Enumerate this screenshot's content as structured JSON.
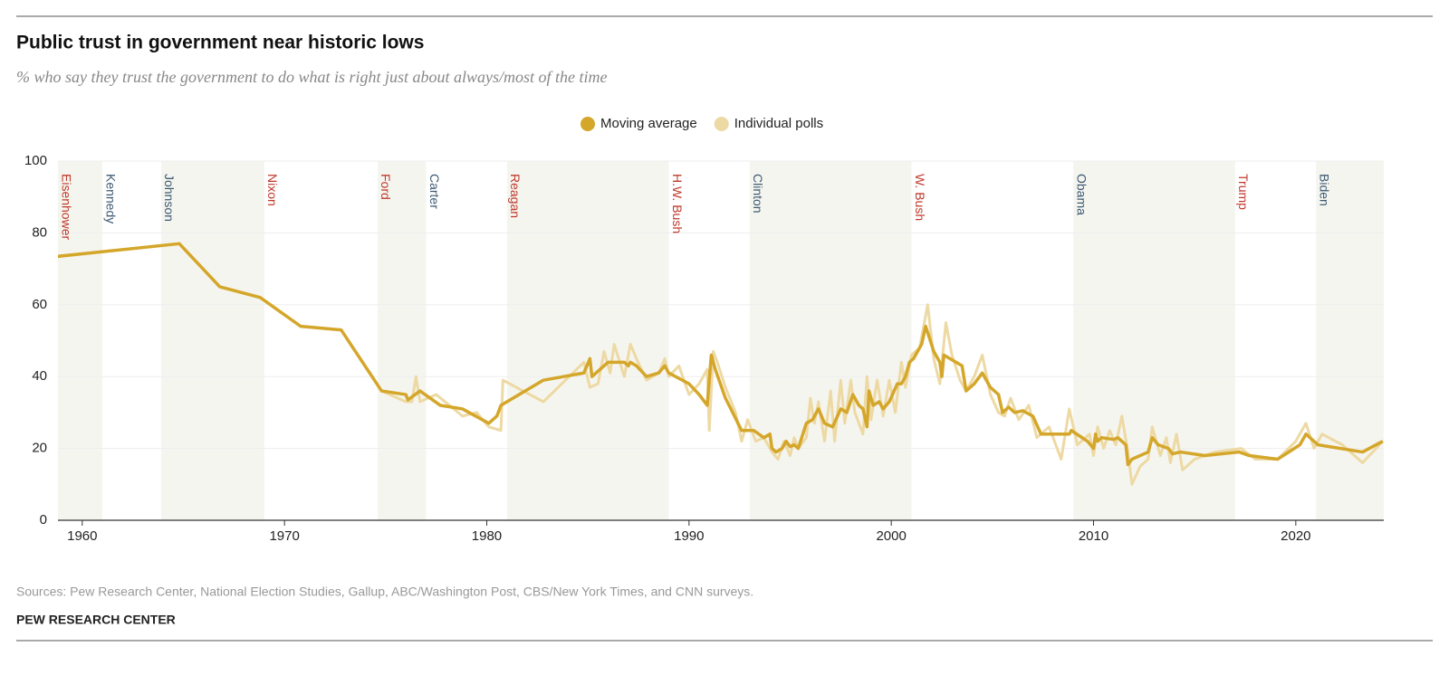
{
  "chart_data": {
    "type": "line",
    "title": "Public trust in government near historic lows",
    "subtitle": "% who say they trust the government to do what is right just about always/most of the time",
    "source": "Sources: Pew Research Center, National Election Studies, Gallup, ABC/Washington Post, CBS/New York Times, and CNN surveys.",
    "brand": "PEW RESEARCH CENTER",
    "xlim": [
      1958.8,
      2024.35
    ],
    "xticks": [
      1960,
      1970,
      1980,
      1990,
      2000,
      2010,
      2020
    ],
    "ylim": [
      0,
      100
    ],
    "yticks": [
      0,
      20,
      40,
      60,
      80,
      100
    ],
    "grid": true,
    "legend": "top",
    "presidents": [
      {
        "name": "Eisenhower",
        "start": 1953,
        "color": "#c0392b"
      },
      {
        "name": "Kennedy",
        "start": 1961.0,
        "color": "#3d5a73"
      },
      {
        "name": "Johnson",
        "start": 1963.9,
        "color": "#3d5a73"
      },
      {
        "name": "Nixon",
        "start": 1969.0,
        "color": "#c0392b"
      },
      {
        "name": "Ford",
        "start": 1974.6,
        "color": "#c0392b"
      },
      {
        "name": "Carter",
        "start": 1977.0,
        "color": "#3d5a73"
      },
      {
        "name": "Reagan",
        "start": 1981.0,
        "color": "#c0392b"
      },
      {
        "name": "H.W. Bush",
        "start": 1989.0,
        "color": "#c0392b"
      },
      {
        "name": "Clinton",
        "start": 1993.0,
        "color": "#3d5a73"
      },
      {
        "name": "W. Bush",
        "start": 2001.0,
        "color": "#c0392b"
      },
      {
        "name": "Obama",
        "start": 2009.0,
        "color": "#3d5a73"
      },
      {
        "name": "Trump",
        "start": 2017.0,
        "color": "#c0392b"
      },
      {
        "name": "Biden",
        "start": 2021.0,
        "color": "#3d5a73"
      }
    ],
    "series": [
      {
        "name": "Individual polls",
        "color": "#edd9a3",
        "x": [
          1958,
          1964.8,
          1966.8,
          1968.8,
          1970.8,
          1972.8,
          1974.8,
          1976.0,
          1976.3,
          1976.5,
          1976.7,
          1977.5,
          1978.8,
          1979.5,
          1980.1,
          1980.7,
          1980.8,
          1982.8,
          1984.8,
          1985.1,
          1985.5,
          1985.8,
          1986.1,
          1986.3,
          1986.8,
          1987.1,
          1987.4,
          1987.9,
          1988.5,
          1988.8,
          1989.0,
          1989.5,
          1990.0,
          1990.5,
          1990.9,
          1991.0,
          1991.2,
          1991.4,
          1991.8,
          1992.3,
          1992.6,
          1992.9,
          1993.3,
          1993.7,
          1994.1,
          1994.4,
          1994.7,
          1995.0,
          1995.2,
          1995.4,
          1995.8,
          1996.0,
          1996.2,
          1996.4,
          1996.7,
          1997.0,
          1997.2,
          1997.5,
          1997.7,
          1998.0,
          1998.2,
          1998.6,
          1998.8,
          1999.0,
          1999.3,
          1999.6,
          1999.9,
          2000.2,
          2000.5,
          2000.7,
          2001.0,
          2001.4,
          2001.8,
          2002.1,
          2002.4,
          2002.7,
          2003.0,
          2003.4,
          2003.7,
          2004.1,
          2004.5,
          2004.9,
          2005.3,
          2005.6,
          2005.9,
          2006.3,
          2006.8,
          2007.2,
          2007.8,
          2008.4,
          2008.8,
          2009.2,
          2009.8,
          2010.0,
          2010.2,
          2010.5,
          2010.8,
          2011.1,
          2011.4,
          2011.7,
          2011.9,
          2012.3,
          2012.7,
          2012.9,
          2013.3,
          2013.6,
          2013.8,
          2014.1,
          2014.4,
          2015.0,
          2016.0,
          2017.3,
          2018.0,
          2019.1,
          2020.0,
          2020.5,
          2020.9,
          2021.3,
          2022.3,
          2023.3,
          2024.3
        ],
        "values": [
          73,
          77,
          65,
          62,
          54,
          53,
          36,
          33,
          33,
          40,
          33,
          35,
          29,
          30,
          26,
          25,
          39,
          33,
          44,
          37,
          38,
          47,
          41,
          49,
          40,
          49,
          45,
          39,
          41,
          45,
          40,
          43,
          35,
          38,
          42,
          25,
          47,
          44,
          37,
          30,
          22,
          28,
          22,
          23,
          19,
          17,
          22,
          18,
          23,
          20,
          23,
          34,
          27,
          33,
          22,
          36,
          22,
          39,
          27,
          39,
          30,
          24,
          40,
          28,
          39,
          29,
          39,
          30,
          44,
          37,
          46,
          48,
          60,
          45,
          38,
          55,
          46,
          39,
          36,
          40,
          46,
          35,
          30,
          29,
          34,
          28,
          32,
          23,
          26,
          17,
          31,
          21,
          24,
          18,
          26,
          20,
          25,
          21,
          29,
          19,
          10,
          15,
          17,
          26,
          18,
          23,
          16,
          24,
          14,
          17,
          19,
          20,
          17,
          17,
          22,
          27,
          20,
          24,
          21,
          16,
          22
        ]
      },
      {
        "name": "Moving average",
        "color": "#d4a62a",
        "x": [
          1958,
          1964.8,
          1966.8,
          1968.8,
          1970.8,
          1972.8,
          1974.8,
          1976.0,
          1976.1,
          1976.7,
          1977.7,
          1978.8,
          1980.1,
          1980.5,
          1980.7,
          1982.8,
          1984.8,
          1985.1,
          1985.2,
          1986.0,
          1986.8,
          1987.0,
          1987.1,
          1987.4,
          1987.9,
          1988.5,
          1988.8,
          1989.0,
          1990.0,
          1990.5,
          1990.9,
          1991.1,
          1991.3,
          1991.8,
          1992.6,
          1993.2,
          1993.7,
          1994.0,
          1994.1,
          1994.3,
          1994.6,
          1994.8,
          1995.0,
          1995.2,
          1995.4,
          1995.8,
          1996.1,
          1996.4,
          1996.7,
          1997.1,
          1997.5,
          1997.8,
          1998.1,
          1998.4,
          1998.6,
          1998.8,
          1998.9,
          1999.1,
          1999.4,
          1999.6,
          1999.9,
          2000.3,
          2000.5,
          2000.7,
          2000.9,
          2001.1,
          2001.5,
          2001.7,
          2002.1,
          2002.4,
          2002.5,
          2002.6,
          2002.9,
          2003.5,
          2003.7,
          2004.1,
          2004.5,
          2004.9,
          2005.3,
          2005.5,
          2005.8,
          2006.1,
          2006.5,
          2007.0,
          2007.4,
          2008.8,
          2008.9,
          2009.7,
          2010.0,
          2010.1,
          2010.2,
          2010.4,
          2011.0,
          2011.2,
          2011.6,
          2011.7,
          2011.9,
          2012.7,
          2012.9,
          2013.2,
          2013.7,
          2013.9,
          2014.3,
          2015.5,
          2017.2,
          2017.7,
          2019.1,
          2020.2,
          2020.5,
          2021.1,
          2023.3,
          2024.3
        ],
        "values": [
          73,
          77,
          65,
          62,
          54,
          53,
          36,
          35,
          33.5,
          36,
          32,
          31,
          27,
          29,
          32,
          39,
          41,
          45,
          40,
          44,
          44,
          43,
          44,
          43,
          40,
          41,
          43,
          41,
          38,
          35,
          32,
          46,
          42,
          34,
          25,
          25,
          23,
          24,
          20,
          19,
          20,
          22,
          20.5,
          21,
          20,
          27,
          28,
          31,
          27,
          26,
          31,
          30,
          35,
          32,
          31,
          26,
          36,
          32,
          33,
          31,
          33,
          38,
          38,
          40,
          44,
          45,
          49,
          54,
          47,
          44,
          40,
          46,
          45,
          43,
          36,
          38,
          41,
          37,
          35,
          30,
          31.5,
          30,
          30.5,
          29,
          24,
          24,
          25,
          22,
          20,
          24,
          22,
          23,
          22.5,
          23,
          21,
          15.5,
          17,
          19,
          23,
          21,
          20,
          18.5,
          19,
          18,
          19,
          18,
          17,
          21,
          24,
          21,
          19,
          22
        ]
      }
    ]
  }
}
